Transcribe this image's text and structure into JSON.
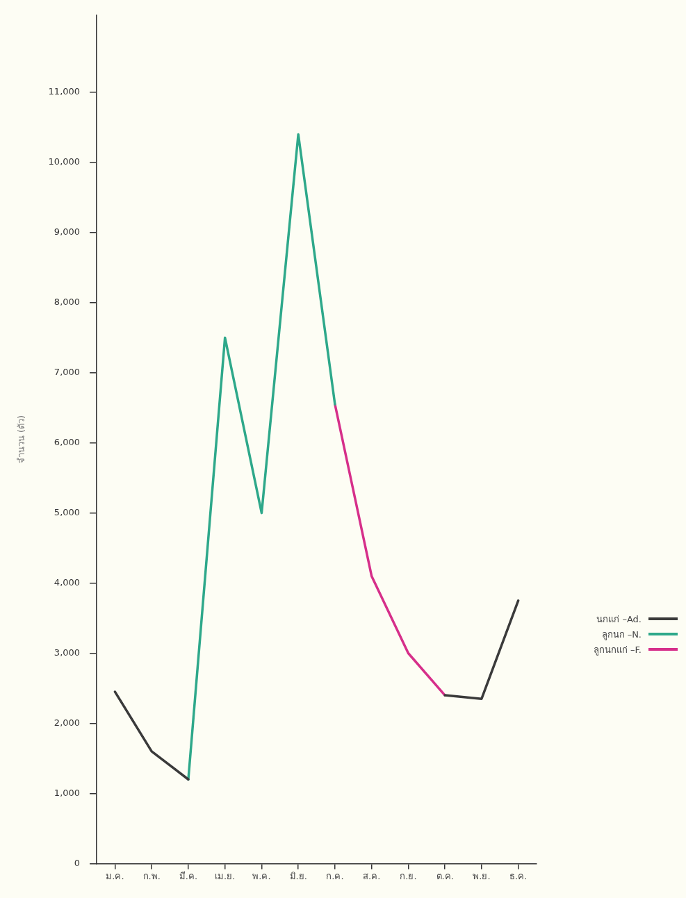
{
  "chart_data": {
    "type": "line",
    "ylabel": "จำนวน (ตัว)",
    "categories": [
      "ม.ค.",
      "ก.พ.",
      "มี.ค.",
      "เม.ย.",
      "พ.ค.",
      "มิ.ย.",
      "ก.ค.",
      "ส.ค.",
      "ก.ย.",
      "ต.ค.",
      "พ.ย.",
      "ธ.ค."
    ],
    "series": [
      {
        "name": "นกแก่ –Ad.",
        "color": "#3a3a3a",
        "values": [
          2450,
          1600,
          1200,
          null,
          null,
          null,
          null,
          null,
          null,
          2400,
          2350,
          3750
        ]
      },
      {
        "name": "ลูกนก –N.",
        "color": "#2ea88a",
        "values": [
          null,
          null,
          1200,
          7500,
          5000,
          10400,
          6550,
          null,
          null,
          null,
          null,
          null
        ]
      },
      {
        "name": "ลูกนกแก่ –F.",
        "color": "#d62f8a",
        "values": [
          null,
          null,
          null,
          null,
          null,
          null,
          6550,
          4100,
          3000,
          2400,
          null,
          null
        ]
      }
    ],
    "ylim": [
      0,
      12100
    ],
    "yticks": [
      0,
      {
        "value": 1000,
        "label": "1,000"
      },
      {
        "value": 2000,
        "label": "2,000"
      },
      {
        "value": 3000,
        "label": "3,000"
      },
      {
        "value": 4000,
        "label": "4,000"
      },
      {
        "value": 5000,
        "label": "5,000"
      },
      {
        "value": 6000,
        "label": "6,000"
      },
      {
        "value": 7000,
        "label": "7,000"
      },
      {
        "value": 8000,
        "label": "8,000"
      },
      {
        "value": 9000,
        "label": "9,000"
      },
      {
        "value": 10000,
        "label": "10,000"
      },
      {
        "value": 11000,
        "label": "11,000"
      }
    ],
    "grid": false,
    "legend": "right",
    "marker": "none",
    "line_style": "solid"
  }
}
